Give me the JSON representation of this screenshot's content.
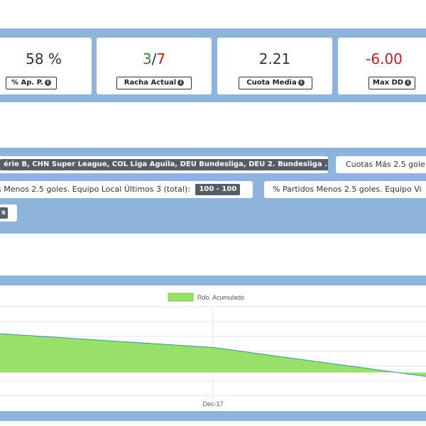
{
  "stats": [
    {
      "value": "58 %",
      "label": "% Ap. P."
    },
    {
      "value_good": "3",
      "value_sep": "/",
      "value_bad": "7",
      "label": "Racha Actual"
    },
    {
      "value": "2.21",
      "label": "Cuota Media"
    },
    {
      "value": "-6.00",
      "label": "Max DD"
    }
  ],
  "filters": {
    "leagues": "érie B, CHN Super League, COL Liga Aguila, DEU Bundesliga, DEU 2. Bundesliga ...",
    "cuotas": "Cuotas Más 2.5 gole",
    "menos_local_label": "s Menos 2.5 goles. Equipo Local Últimos 3 (total):",
    "menos_local_value": "100 - 100",
    "partidos_menos": "% Partidos Menos 2.5 goles. Equipo Vi",
    "small_tag": "s"
  },
  "colors": {
    "band": "#8fb4dc",
    "area_fill": "#98e06a",
    "area_line": "#3a8fa8",
    "good": "#3c7a34",
    "bad": "#c21f1f"
  },
  "chart_data": {
    "type": "area",
    "legend": [
      "Rdo. Acumulado"
    ],
    "legend_position": "top",
    "grid": true,
    "x_tick_labels": [
      "Dec-17"
    ],
    "series": [
      {
        "name": "Rdo. Acumulado",
        "points": [
          [
            0,
            5.9
          ],
          [
            1,
            3.8
          ],
          [
            2,
            -0.6
          ]
        ]
      }
    ],
    "ylim": [
      -3.5,
      10
    ],
    "y_zero": 0
  }
}
